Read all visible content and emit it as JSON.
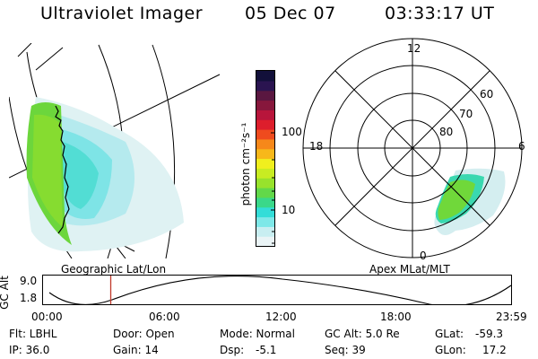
{
  "header": {
    "title": "Ultraviolet Imager",
    "date": "05 Dec 07",
    "time": "03:33:17 UT"
  },
  "geo_panel": {
    "label": "Geographic Lat/Lon"
  },
  "apex_panel": {
    "label": "Apex MLat/MLT",
    "mlt_labels": [
      "12",
      "18",
      "6",
      "0"
    ],
    "lat_labels": [
      "60",
      "70",
      "80"
    ]
  },
  "colorbar": {
    "unit_label": "photon cm⁻²s⁻¹",
    "tick_labels": [
      "100",
      "10"
    ],
    "colors": [
      "#eaf4f6",
      "#c8eef1",
      "#7ee8e8",
      "#33ddd8",
      "#3ad88a",
      "#62d84a",
      "#98e22c",
      "#c8ec22",
      "#f0ef1e",
      "#f7b81a",
      "#f6881a",
      "#ef4b1e",
      "#dd1e2c",
      "#b8153b",
      "#87173c",
      "#5a1740",
      "#2a1450",
      "#12103a"
    ]
  },
  "orbit": {
    "axis_label": "GC Alt",
    "y_labels": [
      "9.0",
      "1.8"
    ],
    "x_labels": [
      "00:00",
      "06:00",
      "12:00",
      "18:00",
      "23:59"
    ],
    "current_time_fraction": 0.146
  },
  "params": {
    "flt": "Flt: LBHL",
    "ip": "IP: 36.0",
    "door": "Door: Open",
    "gain": "Gain: 14",
    "mode": "Mode: Normal",
    "dsp_label": "Dsp:",
    "dsp_value": "-5.1",
    "gc_alt": "GC Alt: 5.0 Re",
    "seq": "Seq: 39",
    "glat_label": "GLat:",
    "glat_value": "-59.3",
    "glon_label": "GLon:",
    "glon_value": "17.2"
  }
}
